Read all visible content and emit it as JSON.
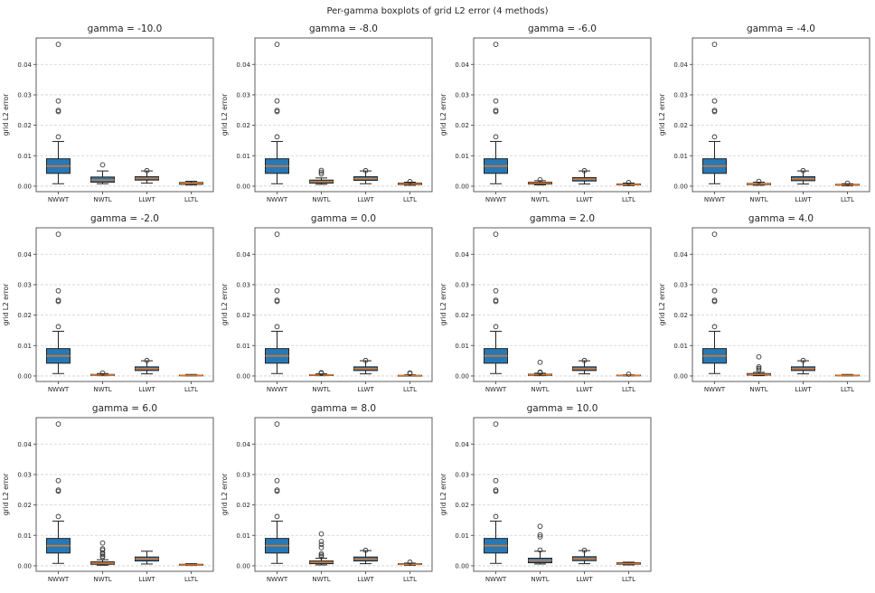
{
  "figure": {
    "title": "Per-gamma boxplots of grid L2 error (4 methods)"
  },
  "chart_data": {
    "type": "boxplot",
    "title": "Per-gamma boxplots of grid L2 error (4 methods)",
    "ylabel": "grid L2 error",
    "categories": [
      "NWWT",
      "NWTL",
      "LLWT",
      "LLTL"
    ],
    "yticks": [
      0.0,
      0.01,
      0.02,
      0.03,
      0.04
    ],
    "ytick_labels": [
      "0.00",
      "0.01",
      "0.02",
      "0.03",
      "0.04"
    ],
    "ylim": [
      -0.0018,
      0.0487
    ],
    "grid": "horizontal dashed gridlines at each ytick",
    "layout": "3 rows x 4 columns, 11 subplots, last cell empty",
    "colors": {
      "box_fill": "#2878b5",
      "box_edge": "#222222",
      "median": "#d9772e",
      "whisker": "#222222",
      "outlier_edge": "#333333",
      "gridline": "#cfcfcf",
      "spine": "#4d4d4d",
      "text": "#262626"
    },
    "subplots": [
      {
        "gamma": -10.0,
        "title": "gamma = -10.0",
        "boxes": [
          {
            "method": "NWWT",
            "whislo": 0.0008,
            "q1": 0.0042,
            "med": 0.0066,
            "q3": 0.009,
            "whishi": 0.0147,
            "outliers": [
              0.0162,
              0.0245,
              0.0249,
              0.028,
              0.0466
            ]
          },
          {
            "method": "NWTL",
            "whislo": 0.0008,
            "q1": 0.0013,
            "med": 0.002,
            "q3": 0.003,
            "whishi": 0.005,
            "outliers": [
              0.007
            ]
          },
          {
            "method": "LLWT",
            "whislo": 0.001,
            "q1": 0.002,
            "med": 0.0026,
            "q3": 0.0031,
            "whishi": 0.005,
            "outliers": [
              0.0051
            ]
          },
          {
            "method": "LLTL",
            "whislo": 0.0004,
            "q1": 0.0006,
            "med": 0.0009,
            "q3": 0.0012,
            "whishi": 0.0016,
            "outliers": []
          }
        ]
      },
      {
        "gamma": -8.0,
        "title": "gamma = -8.0",
        "boxes": [
          {
            "method": "NWWT",
            "whislo": 0.0008,
            "q1": 0.0042,
            "med": 0.0066,
            "q3": 0.009,
            "whishi": 0.0147,
            "outliers": [
              0.0162,
              0.0245,
              0.0249,
              0.028,
              0.0466
            ]
          },
          {
            "method": "NWTL",
            "whislo": 0.0006,
            "q1": 0.001,
            "med": 0.0015,
            "q3": 0.002,
            "whishi": 0.0027,
            "outliers": [
              0.004,
              0.0046,
              0.0052
            ]
          },
          {
            "method": "LLWT",
            "whislo": 0.0008,
            "q1": 0.0019,
            "med": 0.0025,
            "q3": 0.0031,
            "whishi": 0.005,
            "outliers": [
              0.0051
            ]
          },
          {
            "method": "LLTL",
            "whislo": 0.0003,
            "q1": 0.0005,
            "med": 0.0007,
            "q3": 0.001,
            "whishi": 0.0013,
            "outliers": [
              0.0015
            ]
          }
        ]
      },
      {
        "gamma": -6.0,
        "title": "gamma = -6.0",
        "boxes": [
          {
            "method": "NWWT",
            "whislo": 0.0008,
            "q1": 0.0042,
            "med": 0.0066,
            "q3": 0.009,
            "whishi": 0.0147,
            "outliers": [
              0.0162,
              0.0245,
              0.0249,
              0.028,
              0.0466
            ]
          },
          {
            "method": "NWTL",
            "whislo": 0.0004,
            "q1": 0.0007,
            "med": 0.001,
            "q3": 0.0013,
            "whishi": 0.0018,
            "outliers": [
              0.0021
            ]
          },
          {
            "method": "LLWT",
            "whislo": 0.0007,
            "q1": 0.0017,
            "med": 0.0023,
            "q3": 0.0028,
            "whishi": 0.005,
            "outliers": [
              0.0051
            ]
          },
          {
            "method": "LLTL",
            "whislo": 0.0002,
            "q1": 0.0004,
            "med": 0.0005,
            "q3": 0.0007,
            "whishi": 0.001,
            "outliers": [
              0.0012
            ]
          }
        ]
      },
      {
        "gamma": -4.0,
        "title": "gamma = -4.0",
        "boxes": [
          {
            "method": "NWWT",
            "whislo": 0.0008,
            "q1": 0.0042,
            "med": 0.0066,
            "q3": 0.009,
            "whishi": 0.0147,
            "outliers": [
              0.0162,
              0.0245,
              0.0249,
              0.028,
              0.0466
            ]
          },
          {
            "method": "NWTL",
            "whislo": 0.0003,
            "q1": 0.0005,
            "med": 0.0007,
            "q3": 0.0009,
            "whishi": 0.0013,
            "outliers": [
              0.0016
            ]
          },
          {
            "method": "LLWT",
            "whislo": 0.0007,
            "q1": 0.0018,
            "med": 0.0024,
            "q3": 0.0031,
            "whishi": 0.005,
            "outliers": [
              0.0051
            ]
          },
          {
            "method": "LLTL",
            "whislo": 0.0001,
            "q1": 0.0003,
            "med": 0.0004,
            "q3": 0.0006,
            "whishi": 0.0008,
            "outliers": [
              0.001
            ]
          }
        ]
      },
      {
        "gamma": -2.0,
        "title": "gamma = -2.0",
        "boxes": [
          {
            "method": "NWWT",
            "whislo": 0.0008,
            "q1": 0.0042,
            "med": 0.0066,
            "q3": 0.009,
            "whishi": 0.0147,
            "outliers": [
              0.0162,
              0.0245,
              0.0249,
              0.028,
              0.0466
            ]
          },
          {
            "method": "NWTL",
            "whislo": 0.0001,
            "q1": 0.0002,
            "med": 0.0003,
            "q3": 0.0005,
            "whishi": 0.0008,
            "outliers": [
              0.001
            ]
          },
          {
            "method": "LLWT",
            "whislo": 0.0007,
            "q1": 0.0018,
            "med": 0.0024,
            "q3": 0.003,
            "whishi": 0.005,
            "outliers": [
              0.0051
            ]
          },
          {
            "method": "LLTL",
            "whislo": 5e-05,
            "q1": 0.0001,
            "med": 0.0002,
            "q3": 0.0003,
            "whishi": 0.0005,
            "outliers": []
          }
        ]
      },
      {
        "gamma": 0.0,
        "title": "gamma = 0.0",
        "boxes": [
          {
            "method": "NWWT",
            "whislo": 0.0008,
            "q1": 0.0042,
            "med": 0.0066,
            "q3": 0.009,
            "whishi": 0.0147,
            "outliers": [
              0.0162,
              0.0245,
              0.0249,
              0.028,
              0.0466
            ]
          },
          {
            "method": "NWTL",
            "whislo": 0.0001,
            "q1": 0.0002,
            "med": 0.0003,
            "q3": 0.0004,
            "whishi": 0.0007,
            "outliers": [
              0.0009,
              0.0011
            ]
          },
          {
            "method": "LLWT",
            "whislo": 0.0007,
            "q1": 0.0018,
            "med": 0.0024,
            "q3": 0.003,
            "whishi": 0.005,
            "outliers": [
              0.0051
            ]
          },
          {
            "method": "LLTL",
            "whislo": 3e-05,
            "q1": 0.0001,
            "med": 0.00015,
            "q3": 0.0002,
            "whishi": 0.0004,
            "outliers": [
              0.0008,
              0.001
            ]
          }
        ]
      },
      {
        "gamma": 2.0,
        "title": "gamma = 2.0",
        "boxes": [
          {
            "method": "NWWT",
            "whislo": 0.0008,
            "q1": 0.0042,
            "med": 0.0066,
            "q3": 0.009,
            "whishi": 0.0147,
            "outliers": [
              0.0162,
              0.0245,
              0.0249,
              0.028,
              0.0466
            ]
          },
          {
            "method": "NWTL",
            "whislo": 0.0001,
            "q1": 0.0002,
            "med": 0.0004,
            "q3": 0.0006,
            "whishi": 0.0009,
            "outliers": [
              0.0011,
              0.0013,
              0.0045
            ]
          },
          {
            "method": "LLWT",
            "whislo": 0.0007,
            "q1": 0.0018,
            "med": 0.0024,
            "q3": 0.003,
            "whishi": 0.005,
            "outliers": [
              0.0051
            ]
          },
          {
            "method": "LLTL",
            "whislo": 5e-05,
            "q1": 0.0001,
            "med": 0.0002,
            "q3": 0.0003,
            "whishi": 0.0004,
            "outliers": [
              0.0006
            ]
          }
        ]
      },
      {
        "gamma": 4.0,
        "title": "gamma = 4.0",
        "boxes": [
          {
            "method": "NWWT",
            "whislo": 0.0008,
            "q1": 0.0042,
            "med": 0.0066,
            "q3": 0.009,
            "whishi": 0.0147,
            "outliers": [
              0.0162,
              0.0245,
              0.0249,
              0.028,
              0.0466
            ]
          },
          {
            "method": "NWTL",
            "whislo": 0.0001,
            "q1": 0.0003,
            "med": 0.0005,
            "q3": 0.0008,
            "whishi": 0.0012,
            "outliers": [
              0.002,
              0.0025,
              0.003,
              0.0063
            ]
          },
          {
            "method": "LLWT",
            "whislo": 0.0007,
            "q1": 0.0018,
            "med": 0.0024,
            "q3": 0.003,
            "whishi": 0.005,
            "outliers": [
              0.0051
            ]
          },
          {
            "method": "LLTL",
            "whislo": 5e-05,
            "q1": 0.0001,
            "med": 0.0002,
            "q3": 0.0003,
            "whishi": 0.0005,
            "outliers": []
          }
        ]
      },
      {
        "gamma": 6.0,
        "title": "gamma = 6.0",
        "boxes": [
          {
            "method": "NWWT",
            "whislo": 0.0008,
            "q1": 0.0042,
            "med": 0.0066,
            "q3": 0.009,
            "whishi": 0.0147,
            "outliers": [
              0.0162,
              0.0245,
              0.0249,
              0.028,
              0.0466
            ]
          },
          {
            "method": "NWTL",
            "whislo": 0.0002,
            "q1": 0.0005,
            "med": 0.0009,
            "q3": 0.0013,
            "whishi": 0.002,
            "outliers": [
              0.0028,
              0.0032,
              0.0038,
              0.0043,
              0.0052,
              0.0056,
              0.0075
            ]
          },
          {
            "method": "LLWT",
            "whislo": 0.0006,
            "q1": 0.0016,
            "med": 0.0023,
            "q3": 0.0029,
            "whishi": 0.0048,
            "outliers": []
          },
          {
            "method": "LLTL",
            "whislo": 0.0001,
            "q1": 0.0002,
            "med": 0.0003,
            "q3": 0.0005,
            "whishi": 0.0007,
            "outliers": []
          }
        ]
      },
      {
        "gamma": 8.0,
        "title": "gamma = 8.0",
        "boxes": [
          {
            "method": "NWWT",
            "whislo": 0.0008,
            "q1": 0.0042,
            "med": 0.0066,
            "q3": 0.009,
            "whishi": 0.0147,
            "outliers": [
              0.0162,
              0.0245,
              0.0249,
              0.028,
              0.0466
            ]
          },
          {
            "method": "NWTL",
            "whislo": 0.0003,
            "q1": 0.0007,
            "med": 0.0012,
            "q3": 0.0016,
            "whishi": 0.0025,
            "outliers": [
              0.003,
              0.0035,
              0.004,
              0.006,
              0.007,
              0.008,
              0.0105
            ]
          },
          {
            "method": "LLWT",
            "whislo": 0.0007,
            "q1": 0.0016,
            "med": 0.0022,
            "q3": 0.0029,
            "whishi": 0.005,
            "outliers": [
              0.0051
            ]
          },
          {
            "method": "LLTL",
            "whislo": 0.0002,
            "q1": 0.0004,
            "med": 0.0005,
            "q3": 0.0007,
            "whishi": 0.0009,
            "outliers": [
              0.0012
            ]
          }
        ]
      },
      {
        "gamma": 10.0,
        "title": "gamma = 10.0",
        "boxes": [
          {
            "method": "NWWT",
            "whislo": 0.0008,
            "q1": 0.0042,
            "med": 0.0066,
            "q3": 0.009,
            "whishi": 0.0147,
            "outliers": [
              0.0162,
              0.0245,
              0.0249,
              0.028,
              0.0466
            ]
          },
          {
            "method": "NWTL",
            "whislo": 0.0006,
            "q1": 0.001,
            "med": 0.0018,
            "q3": 0.0025,
            "whishi": 0.0048,
            "outliers": [
              0.0052,
              0.0095,
              0.0102,
              0.013
            ]
          },
          {
            "method": "LLWT",
            "whislo": 0.0007,
            "q1": 0.0017,
            "med": 0.0023,
            "q3": 0.003,
            "whishi": 0.005,
            "outliers": [
              0.0051
            ]
          },
          {
            "method": "LLTL",
            "whislo": 0.0003,
            "q1": 0.0005,
            "med": 0.0007,
            "q3": 0.001,
            "whishi": 0.0012,
            "outliers": []
          }
        ]
      }
    ]
  }
}
